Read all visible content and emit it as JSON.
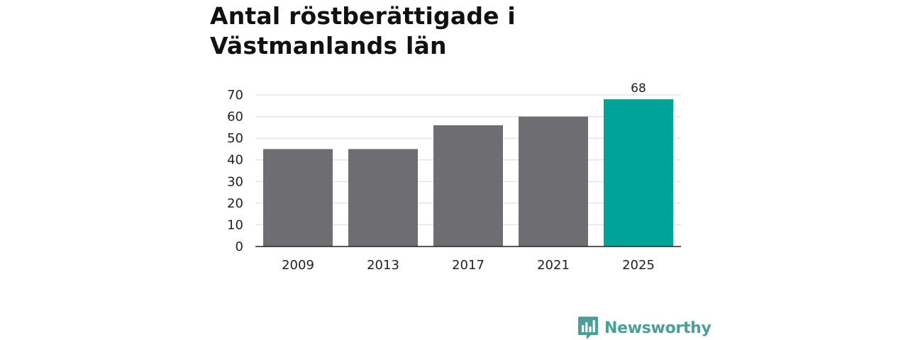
{
  "title": "Antal röstberättigade i Västmanlands län",
  "chart_data": {
    "type": "bar",
    "title": "Antal röstberättigade i Västmanlands län",
    "xlabel": "",
    "ylabel": "",
    "categories": [
      "2009",
      "2013",
      "2017",
      "2021",
      "2025"
    ],
    "values": [
      45,
      45,
      56,
      60,
      68
    ],
    "ylim": [
      0,
      70
    ],
    "yticks": [
      0,
      10,
      20,
      30,
      40,
      50,
      60,
      70
    ],
    "grid": true,
    "legend": "none",
    "colors": {
      "default": "#6e6d72",
      "highlight": "#00a398"
    },
    "highlight_index": 4,
    "data_labels": [
      {
        "category": "2025",
        "text": "68"
      }
    ]
  },
  "brand": {
    "name": "Newsworthy",
    "icon": "newsworthy-logo-icon",
    "color": "#4a9f98"
  }
}
